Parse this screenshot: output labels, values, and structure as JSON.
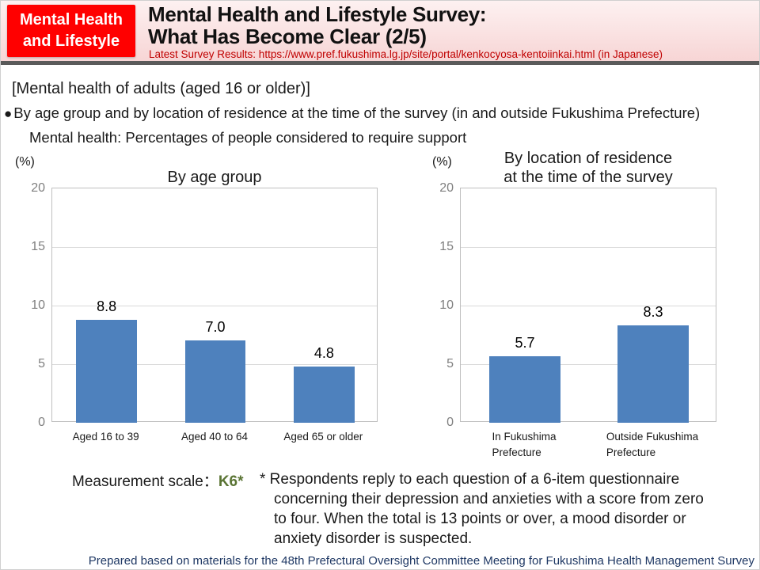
{
  "header": {
    "badge_line1": "Mental Health",
    "badge_line2": "and Lifestyle",
    "title_line1": "Mental Health and Lifestyle Survey:",
    "title_line2": "What Has Become Clear (2/5)",
    "subtitle": "Latest Survey Results: https://www.pref.fukushima.lg.jp/site/portal/kenkocyosa-kentoiinkai.html (in Japanese)",
    "colors": {
      "badge_bg": "#FF0000",
      "subtitle_red": "#C00000",
      "divider_gray": "#5A5A5A"
    }
  },
  "body": {
    "section_heading": "[Mental health of adults (aged 16 or older)]",
    "bullet_icon": "●",
    "bullet_text": "By age group and by location of residence at the time of the survey (in and outside Fukushima Prefecture)",
    "sub_heading": "Mental health: Percentages of people considered to require support"
  },
  "chart_data": [
    {
      "type": "bar",
      "title": "By age group",
      "unit_label": "(%)",
      "categories": [
        "Aged 16 to 39",
        "Aged 40 to 64",
        "Aged 65 or older"
      ],
      "values": [
        8.8,
        7.0,
        4.8
      ],
      "value_labels": [
        "8.8",
        "7.0",
        "4.8"
      ],
      "ylim": [
        0,
        20
      ],
      "yticks": [
        0,
        5,
        10,
        15,
        20
      ],
      "grid": true,
      "legend": "none",
      "bar_color": "#4E81BD",
      "axis_color": "#BFBFBF",
      "grid_color": "#D9D9D9",
      "tick_label_color": "#7F7F7F"
    },
    {
      "type": "bar",
      "title": "By location of residence\nat the time of the survey",
      "unit_label": "(%)",
      "categories": [
        "In Fukushima\nPrefecture",
        "Outside Fukushima\nPrefecture"
      ],
      "values": [
        5.7,
        8.3
      ],
      "value_labels": [
        "5.7",
        "8.3"
      ],
      "ylim": [
        0,
        20
      ],
      "yticks": [
        0,
        5,
        10,
        15,
        20
      ],
      "grid": true,
      "legend": "none",
      "bar_color": "#4E81BD",
      "axis_color": "#BFBFBF",
      "grid_color": "#D9D9D9",
      "tick_label_color": "#7F7F7F"
    }
  ],
  "notes": {
    "measurement_label": "Measurement scale",
    "measurement_colon": "：",
    "measurement_scale": "K6*",
    "note_text": "* Respondents reply to each question of a 6-item questionnaire\nconcerning their depression and anxieties with a score from zero\nto four. When the total is 13 points or over, a mood disorder or\nanxiety disorder is suspected."
  },
  "footer": {
    "source": "Prepared based on materials for the 48th Prefectural Oversight Committee Meeting for Fukushima Health Management Survey"
  }
}
